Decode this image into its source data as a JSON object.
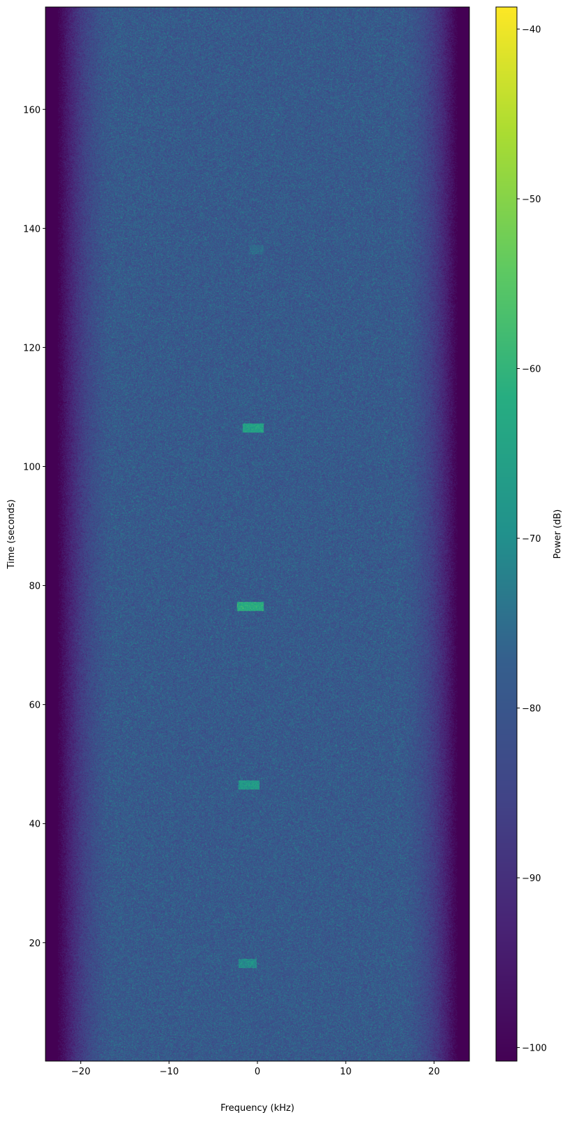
{
  "chart_data": {
    "type": "heatmap",
    "subtype": "spectrogram",
    "title": "",
    "xlabel": "Frequency (kHz)",
    "ylabel": "Time (seconds)",
    "xlim": [
      -24,
      24
    ],
    "ylim": [
      0.1,
      177.2
    ],
    "xticks": [
      -20,
      -10,
      0,
      10,
      20
    ],
    "xtick_labels": [
      "−20",
      "−10",
      "0",
      "10",
      "20"
    ],
    "yticks": [
      20,
      40,
      60,
      80,
      100,
      120,
      140,
      160
    ],
    "ytick_labels": [
      "20",
      "40",
      "60",
      "80",
      "100",
      "120",
      "140",
      "160"
    ],
    "colormap": "viridis",
    "colorbar": {
      "label": "Power (dB)",
      "range": [
        -100.8,
        -38.7
      ],
      "ticks": [
        -100,
        -90,
        -80,
        -70,
        -60,
        -50,
        -40
      ],
      "tick_labels": [
        "−100",
        "−90",
        "−80",
        "−70",
        "−60",
        "−50",
        "−40"
      ]
    },
    "noise_floor_db": -79,
    "passband_khz": [
      -22,
      22
    ],
    "out_of_band_db": -101,
    "bursts": [
      {
        "time_s": [
          15.8,
          17.3
        ],
        "freq_khz": [
          -2.2,
          -0.1
        ],
        "power_db": -70
      },
      {
        "time_s": [
          45.8,
          47.3
        ],
        "freq_khz": [
          -2.2,
          0.2
        ],
        "power_db": -67
      },
      {
        "time_s": [
          75.8,
          77.3
        ],
        "freq_khz": [
          -2.3,
          0.7
        ],
        "power_db": -62
      },
      {
        "time_s": [
          105.8,
          107.3
        ],
        "freq_khz": [
          -1.7,
          0.7
        ],
        "power_db": -65
      },
      {
        "time_s": [
          135.8,
          137.3
        ],
        "freq_khz": [
          -0.9,
          0.7
        ],
        "power_db": -76
      }
    ]
  }
}
